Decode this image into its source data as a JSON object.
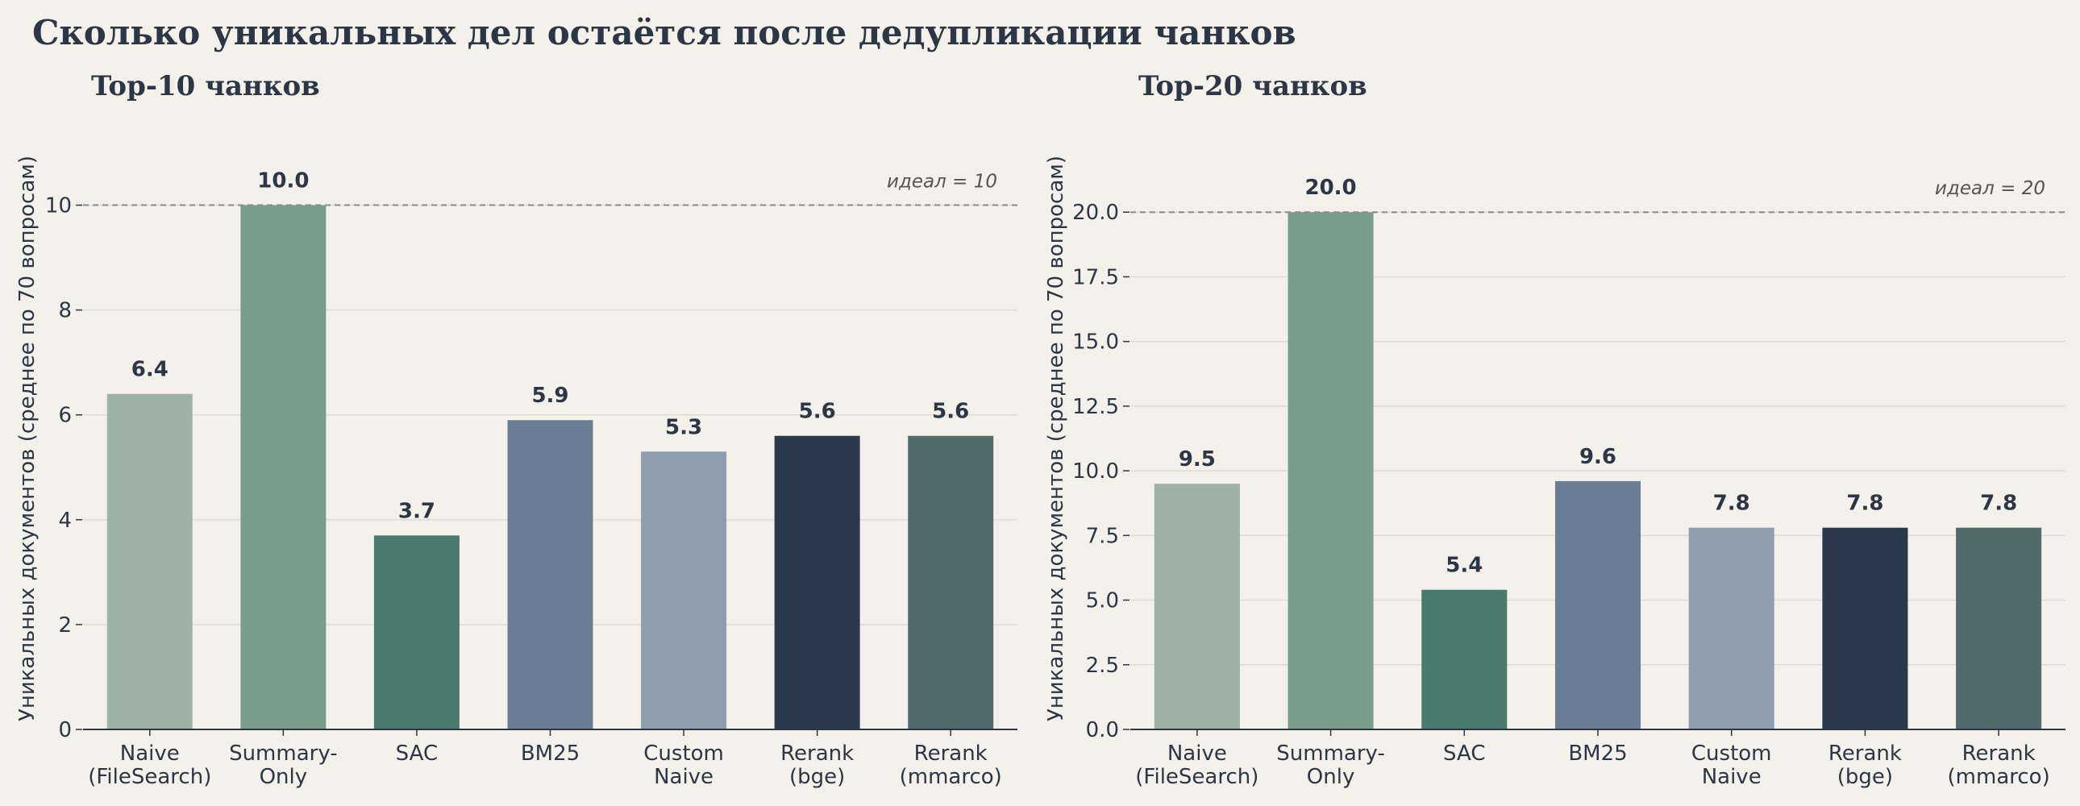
{
  "suptitle": "Сколько уникальных дел остаётся после дедупликации чанков",
  "chart_data": [
    {
      "type": "bar",
      "title": "Top-10 чанков",
      "ylabel": "Уникальных документов (среднее по 70 вопросам)",
      "categories": [
        [
          "Naive",
          "(FileSearch)"
        ],
        [
          "Summary-",
          "Only"
        ],
        [
          "SAC"
        ],
        [
          "BM25"
        ],
        [
          "Custom",
          "Naive"
        ],
        [
          "Rerank",
          "(bge)"
        ],
        [
          "Rerank",
          "(mmarco)"
        ]
      ],
      "values": [
        6.4,
        10.0,
        3.7,
        5.9,
        5.3,
        5.6,
        5.6
      ],
      "value_labels": [
        "6.4",
        "10.0",
        "3.7",
        "5.9",
        "5.3",
        "5.6",
        "5.6"
      ],
      "colors": [
        "#9fb2a6",
        "#789d8a",
        "#4a7b6e",
        "#6a7d94",
        "#8f9eae",
        "#2a394b",
        "#536a6d"
      ],
      "ylim": [
        0,
        11.1
      ],
      "yticks": [
        0,
        2,
        4,
        6,
        8,
        10
      ],
      "ytick_labels": [
        "0",
        "2",
        "4",
        "6",
        "8",
        "10"
      ],
      "reference_line": {
        "value": 10,
        "label": "идеал = 10"
      },
      "grid": "y"
    },
    {
      "type": "bar",
      "title": "Top-20 чанков",
      "ylabel": "Уникальных документов (среднее по 70 вопросам)",
      "categories": [
        [
          "Naive",
          "(FileSearch)"
        ],
        [
          "Summary-",
          "Only"
        ],
        [
          "SAC"
        ],
        [
          "BM25"
        ],
        [
          "Custom",
          "Naive"
        ],
        [
          "Rerank",
          "(bge)"
        ],
        [
          "Rerank",
          "(mmarco)"
        ]
      ],
      "values": [
        9.5,
        20.0,
        5.4,
        9.6,
        7.8,
        7.8,
        7.8
      ],
      "value_labels": [
        "9.5",
        "20.0",
        "5.4",
        "9.6",
        "7.8",
        "7.8",
        "7.8"
      ],
      "colors": [
        "#9fb2a6",
        "#789d8a",
        "#4a7b6e",
        "#6a7d94",
        "#8f9eae",
        "#2a394b",
        "#536a6d"
      ],
      "ylim": [
        0,
        22.5
      ],
      "yticks": [
        0,
        2.5,
        5,
        7.5,
        10,
        12.5,
        15,
        17.5,
        20
      ],
      "ytick_labels": [
        "0.0",
        "2.5",
        "5.0",
        "7.5",
        "10.0",
        "12.5",
        "15.0",
        "17.5",
        "20.0"
      ],
      "reference_line": {
        "value": 20,
        "label": "идеал = 20"
      },
      "grid": "y"
    }
  ]
}
